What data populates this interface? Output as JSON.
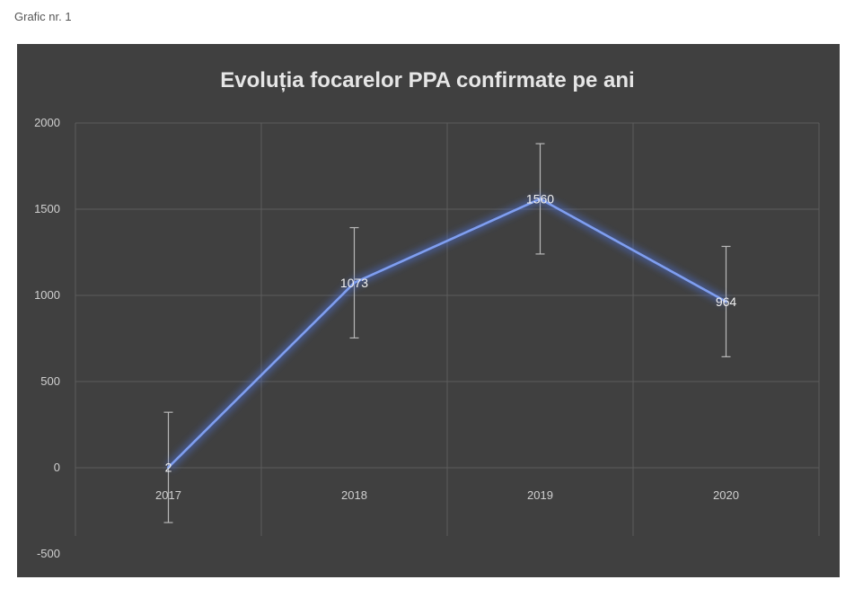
{
  "caption": "Grafic nr. 1",
  "chart_data": {
    "type": "line",
    "title": "Evoluția focarelor PPA confirmate pe ani",
    "xlabel": "",
    "ylabel": "",
    "categories": [
      "2017",
      "2018",
      "2019",
      "2020"
    ],
    "series": [
      {
        "values": [
          2,
          1073,
          1560,
          964
        ],
        "error_plus": [
          320,
          320,
          320,
          320
        ],
        "error_minus": [
          320,
          320,
          320,
          320
        ],
        "color": "#4a6fd1"
      }
    ],
    "data_labels": [
      "2",
      "1073",
      "1560",
      "964"
    ],
    "ylim": [
      -500,
      2000
    ],
    "yticks": [
      "-500",
      "0",
      "500",
      "1000",
      "1500",
      "2000"
    ],
    "grid": true,
    "legend": "none",
    "colors": {
      "background": "#404040",
      "grid": "#5c5c5c",
      "error_bar": "#b8b8b8"
    }
  }
}
